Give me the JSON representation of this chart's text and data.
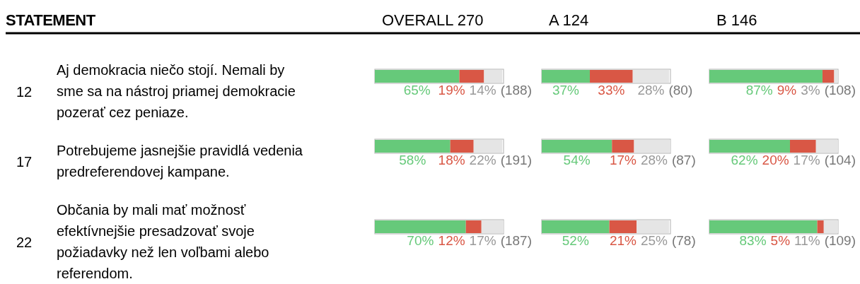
{
  "chart_data": [
    {
      "type": "bar",
      "orientation": "horizontal",
      "stacked": true,
      "title": "OVERALL 270",
      "ylabel": "STATEMENT",
      "tick_labels": "y",
      "categories": [
        "12 Aj demokracia niečo stojí. Nemali by sme sa na nástroj priamej demokracie pozerať cez peniaze.",
        "17 Potrebujeme jasnejšie pravidlá vedenia predreferendovej kampane.",
        "22 Občania by mali mať možnosť efektívnejšie presadzovať svoje požiadavky než len voľbami alebo referendom."
      ],
      "series": [
        {
          "color": "#66c97a",
          "values": [
            65,
            58,
            70
          ],
          "value_labels": [
            "65%",
            "58%",
            "70%"
          ]
        },
        {
          "color": "#d95745",
          "values": [
            19,
            18,
            12
          ],
          "value_labels": [
            "19%",
            "18%",
            "12%"
          ]
        },
        {
          "color": "#e5e5e5",
          "values": [
            14,
            22,
            17
          ],
          "value_labels": [
            "14%",
            "22%",
            "17%"
          ]
        }
      ],
      "annotations": [
        "(188)",
        "(191)",
        "(187)"
      ]
    },
    {
      "type": "bar",
      "orientation": "horizontal",
      "stacked": true,
      "title": "A 124",
      "tick_labels": false,
      "categories": [
        null,
        null,
        null
      ],
      "series": [
        {
          "color": "#66c97a",
          "values": [
            37,
            54,
            52
          ],
          "value_labels": [
            "37%",
            "54%",
            "52%"
          ]
        },
        {
          "color": "#d95745",
          "values": [
            33,
            17,
            21
          ],
          "value_labels": [
            "33%",
            "17%",
            "21%"
          ]
        },
        {
          "color": "#e5e5e5",
          "values": [
            28,
            28,
            25
          ],
          "value_labels": [
            "28%",
            "28%",
            "25%"
          ]
        }
      ],
      "annotations": [
        "(80)",
        "(87)",
        "(78)"
      ]
    },
    {
      "type": "bar",
      "orientation": "horizontal",
      "stacked": true,
      "title": "B 146",
      "tick_labels": false,
      "categories": [
        null,
        null,
        null
      ],
      "series": [
        {
          "color": "#66c97a",
          "values": [
            87,
            62,
            83
          ],
          "value_labels": [
            "87%",
            "62%",
            "83%"
          ]
        },
        {
          "color": "#d95745",
          "values": [
            9,
            20,
            5
          ],
          "value_labels": [
            "9%",
            "20%",
            "5%"
          ]
        },
        {
          "color": "#e5e5e5",
          "values": [
            3,
            17,
            11
          ],
          "value_labels": [
            "3%",
            "17%",
            "11%"
          ]
        }
      ],
      "annotations": [
        "(108)",
        "(104)",
        "(109)"
      ]
    }
  ]
}
